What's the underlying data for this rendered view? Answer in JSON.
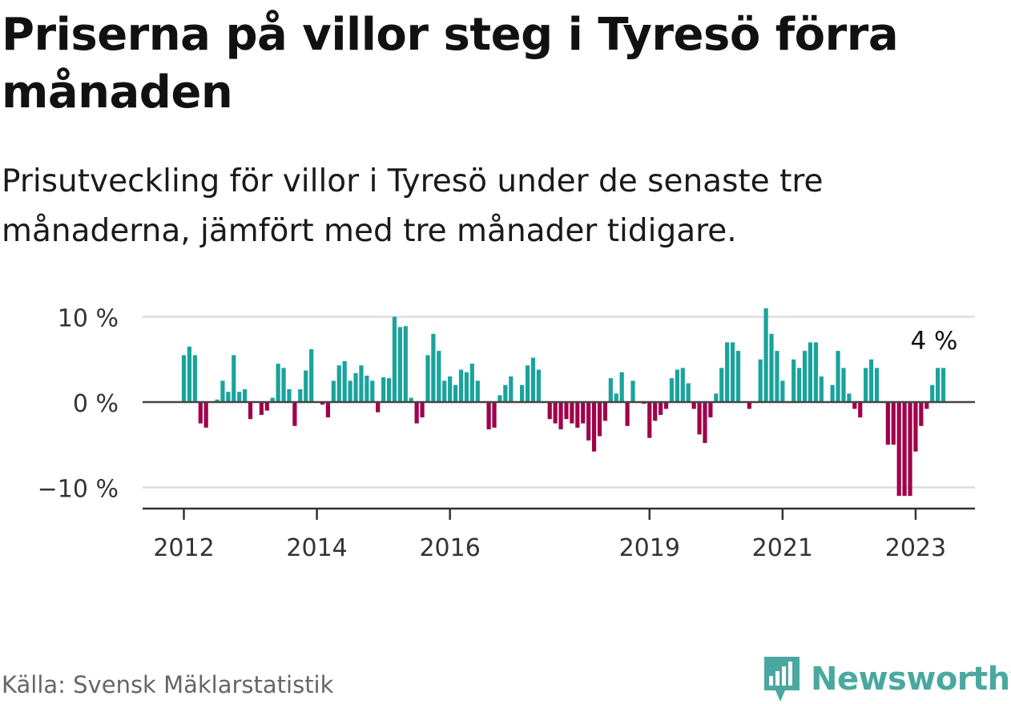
{
  "header": {
    "title": "Priserna på villor steg i Tyresö förra månaden",
    "subtitle": "Prisutveckling för villor i Tyresö under de senaste tre månaderna, jämfört med tre månader tidigare."
  },
  "footer": {
    "source": "Källa: Svensk Mäklarstatistik",
    "brand": "Newsworthy"
  },
  "colors": {
    "positive": "#1aa39c",
    "negative": "#a0004a",
    "grid": "#dddddd",
    "axis": "#333333",
    "brand": "#4aa8a0"
  },
  "chart_data": {
    "type": "bar",
    "title": "Priserna på villor steg i Tyresö förra månaden",
    "xlabel": "",
    "ylabel": "",
    "ylim": [
      -12.5,
      10.5
    ],
    "grid": true,
    "y_ticks": [
      {
        "value": 10,
        "label": "10 %"
      },
      {
        "value": 0,
        "label": "0 %"
      },
      {
        "value": -10,
        "label": "−10 %"
      }
    ],
    "x_ticks": [
      {
        "index": 0,
        "label": "2012"
      },
      {
        "index": 24,
        "label": "2014"
      },
      {
        "index": 48,
        "label": "2016"
      },
      {
        "index": 84,
        "label": "2019"
      },
      {
        "index": 108,
        "label": "2021"
      },
      {
        "index": 132,
        "label": "2023"
      }
    ],
    "start": "2012-01",
    "annotation": {
      "label": "4 %",
      "index": 137
    },
    "values": [
      5.5,
      6.5,
      5.5,
      -2.5,
      -3,
      0,
      0.3,
      2.5,
      1.2,
      5.5,
      1.2,
      1.5,
      -2,
      0,
      -1.5,
      -1,
      0.5,
      4.5,
      4,
      1.5,
      -2.8,
      1.5,
      3.7,
      6.2,
      0,
      -0.3,
      -1.8,
      2.5,
      4.3,
      4.8,
      2.5,
      3.4,
      4.3,
      3.1,
      2.5,
      -1.2,
      2.9,
      2.8,
      10,
      8.8,
      8.9,
      0.5,
      -2.5,
      -1.8,
      5.5,
      8,
      6,
      2.5,
      3,
      2,
      3.8,
      3.5,
      4.5,
      2.5,
      0,
      -3.2,
      -3,
      0.8,
      2,
      3,
      0,
      2,
      4.3,
      5.2,
      3.8,
      0,
      -2,
      -2.5,
      -3.2,
      -2,
      -2.5,
      -3,
      -2.5,
      -4.5,
      -5.8,
      -4,
      -2.2,
      2.8,
      1,
      3.5,
      -2.8,
      2.5,
      0,
      -0.2,
      -4.2,
      -2.2,
      -1.5,
      -0.8,
      2.8,
      3.8,
      4,
      2.2,
      -0.8,
      -3.8,
      -4.8,
      -1.8,
      1,
      4,
      7,
      7,
      6,
      0,
      -0.8,
      0,
      5,
      11,
      8,
      6,
      2.5,
      0,
      5,
      4,
      6,
      7,
      7,
      3,
      0,
      2,
      6,
      4,
      1,
      -0.8,
      -1.8,
      4,
      5,
      4,
      0,
      -5,
      -5,
      -11,
      -11,
      -11,
      -5.8,
      -2.8,
      -0.8,
      2,
      4,
      4
    ]
  }
}
